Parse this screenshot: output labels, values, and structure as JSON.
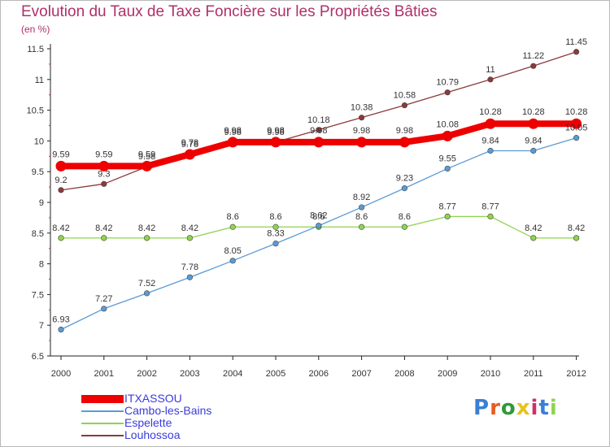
{
  "header": {
    "title": "Evolution du Taux de Taxe Foncière sur les Propriétés Bâties",
    "subtitle": "(en %)"
  },
  "chart_data": {
    "type": "line",
    "title": "Evolution du Taux de Taxe Foncière sur les Propriétés Bâties",
    "subtitle": "(en %)",
    "xlabel": "",
    "ylabel": "",
    "x": [
      "2000",
      "2001",
      "2002",
      "2003",
      "2004",
      "2005",
      "2006",
      "2007",
      "2008",
      "2009",
      "2010",
      "2011",
      "2012"
    ],
    "ylim": [
      6.5,
      11.5
    ],
    "yticks": [
      "6.5",
      "7",
      "7.5",
      "8",
      "8.5",
      "9",
      "9.5",
      "10",
      "10.5",
      "11",
      "11.5"
    ],
    "grid": false,
    "legend_placement": "bottom-left",
    "series": [
      {
        "name": "ITXASSOU",
        "color": "#ee0000",
        "values": [
          9.59,
          9.59,
          9.59,
          9.78,
          9.98,
          9.98,
          9.98,
          9.98,
          9.98,
          10.08,
          10.28,
          10.28,
          10.28
        ],
        "labels": [
          "9.59",
          "9.59",
          "9.59",
          "9.78",
          "9.98",
          "9.98",
          "9.98",
          "9.98",
          "9.98",
          "10.08",
          "10.28",
          "10.28",
          "10.28"
        ]
      },
      {
        "name": "Cambo-les-Bains",
        "color": "#5b9bd5",
        "values": [
          6.93,
          7.27,
          7.52,
          7.78,
          8.05,
          8.33,
          8.62,
          8.92,
          9.23,
          9.55,
          9.84,
          9.84,
          10.05
        ],
        "labels": [
          "6.93",
          "7.27",
          "7.52",
          "7.78",
          "8.05",
          "8.33",
          "8.62",
          "8.92",
          "9.23",
          "9.55",
          "9.84",
          "9.84",
          "10.05"
        ]
      },
      {
        "name": "Espelette",
        "color": "#8fd44f",
        "values": [
          8.42,
          8.42,
          8.42,
          8.42,
          8.6,
          8.6,
          8.6,
          8.6,
          8.6,
          8.77,
          8.77,
          8.42,
          8.42
        ],
        "labels": [
          "8.42",
          "8.42",
          "8.42",
          "8.42",
          "8.6",
          "8.6",
          "8.6",
          "8.6",
          "8.6",
          "8.77",
          "8.77",
          "8.42",
          "8.42"
        ]
      },
      {
        "name": "Louhossoa",
        "color": "#8b3a3a",
        "values": [
          9.2,
          9.3,
          9.58,
          9.78,
          9.98,
          9.98,
          10.18,
          10.38,
          10.58,
          10.79,
          11.0,
          11.22,
          11.45
        ],
        "labels": [
          "9.2",
          "9.3",
          "9.58",
          "9.78",
          "9.98",
          "9.98",
          "10.18",
          "10.38",
          "10.58",
          "10.79",
          "11",
          "11.22",
          "11.45"
        ]
      }
    ]
  },
  "legend": {
    "items": [
      {
        "label": "ITXASSOU",
        "color": "#ee0000"
      },
      {
        "label": "Cambo-les-Bains",
        "color": "#5b9bd5"
      },
      {
        "label": "Espelette",
        "color": "#8fd44f"
      },
      {
        "label": "Louhossoa",
        "color": "#8b3a3a"
      }
    ]
  },
  "logo": {
    "text": "Proxiti",
    "colors": [
      "#3a7fd5",
      "#e85c1e",
      "#2f9a3a",
      "#e8c21e",
      "#d0306a",
      "#3a7fd5",
      "#8fd44f"
    ]
  }
}
